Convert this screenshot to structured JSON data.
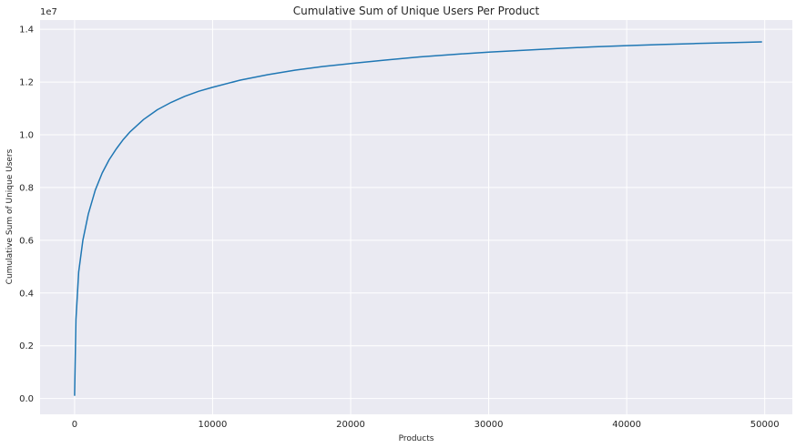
{
  "chart_data": {
    "type": "line",
    "title": "Cumulative Sum of Unique Users Per Product",
    "xlabel": "Products",
    "ylabel": "Cumulative Sum of Unique Users",
    "y_offset_label": "1e7",
    "xlim": [
      -2500,
      52000
    ],
    "ylim": [
      -0.06,
      1.435
    ],
    "x_ticks": [
      0,
      10000,
      20000,
      30000,
      40000,
      50000
    ],
    "x_tick_labels": [
      "0",
      "10000",
      "20000",
      "30000",
      "40000",
      "50000"
    ],
    "y_ticks": [
      0.0,
      0.2,
      0.4,
      0.6,
      0.8,
      1.0,
      1.2,
      1.4
    ],
    "y_tick_labels": [
      "0.0",
      "0.2",
      "0.4",
      "0.6",
      "0.8",
      "1.0",
      "1.2",
      "1.4"
    ],
    "grid": true,
    "colors": {
      "background": "#eaeaf2",
      "grid": "#ffffff",
      "line": "#1f77b4"
    },
    "series": [
      {
        "x": [
          0,
          100,
          300,
          600,
          1000,
          1500,
          2000,
          2500,
          3000,
          3500,
          4000,
          5000,
          6000,
          7000,
          8000,
          9000,
          10000,
          12000,
          14000,
          16000,
          18000,
          20000,
          22500,
          25000,
          27500,
          30000,
          32500,
          35000,
          37500,
          40000,
          42500,
          45000,
          47500,
          49800
        ],
        "values": [
          0.01,
          0.3,
          0.48,
          0.6,
          0.7,
          0.79,
          0.855,
          0.905,
          0.945,
          0.98,
          1.01,
          1.058,
          1.095,
          1.123,
          1.146,
          1.165,
          1.18,
          1.207,
          1.228,
          1.245,
          1.259,
          1.27,
          1.283,
          1.295,
          1.305,
          1.313,
          1.32,
          1.327,
          1.333,
          1.338,
          1.342,
          1.346,
          1.349,
          1.352
        ]
      }
    ]
  }
}
